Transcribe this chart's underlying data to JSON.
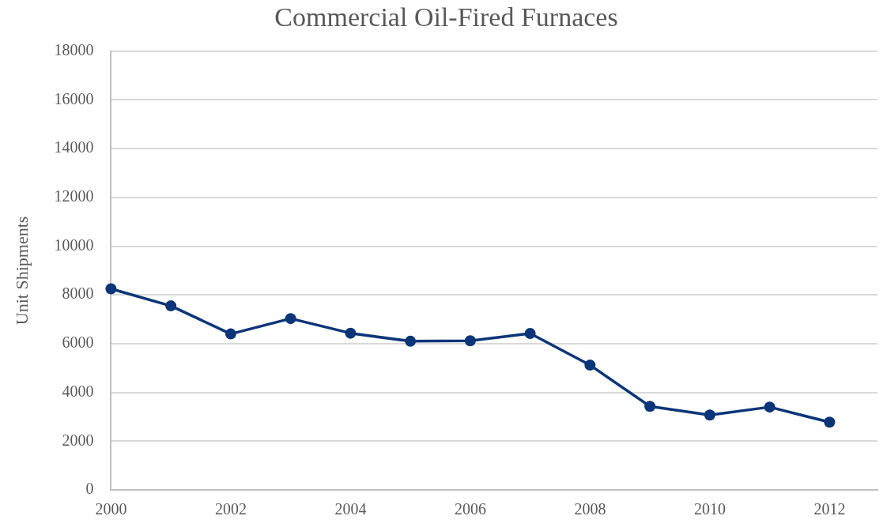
{
  "chart_data": {
    "type": "line",
    "title": "Commercial Oil-Fired Furnaces",
    "ylabel": "Unit Shipments",
    "x": [
      2000,
      2001,
      2002,
      2003,
      2004,
      2005,
      2006,
      2007,
      2008,
      2009,
      2010,
      2011,
      2012
    ],
    "series": [
      {
        "color": "#0b3578",
        "values": [
          8250,
          7550,
          6400,
          7030,
          6430,
          6100,
          6120,
          6420,
          5120,
          3430,
          3070,
          3400,
          2780
        ]
      }
    ],
    "xlim": [
      2000,
      2012.8
    ],
    "xticks": [
      2000,
      2002,
      2004,
      2006,
      2008,
      2010,
      2012
    ],
    "ylim": [
      0,
      18000
    ],
    "yticks": [
      0,
      2000,
      4000,
      6000,
      8000,
      10000,
      12000,
      14000,
      16000,
      18000
    ],
    "grid": "y",
    "legend": false,
    "marker": "circle",
    "line_style": "solid"
  }
}
